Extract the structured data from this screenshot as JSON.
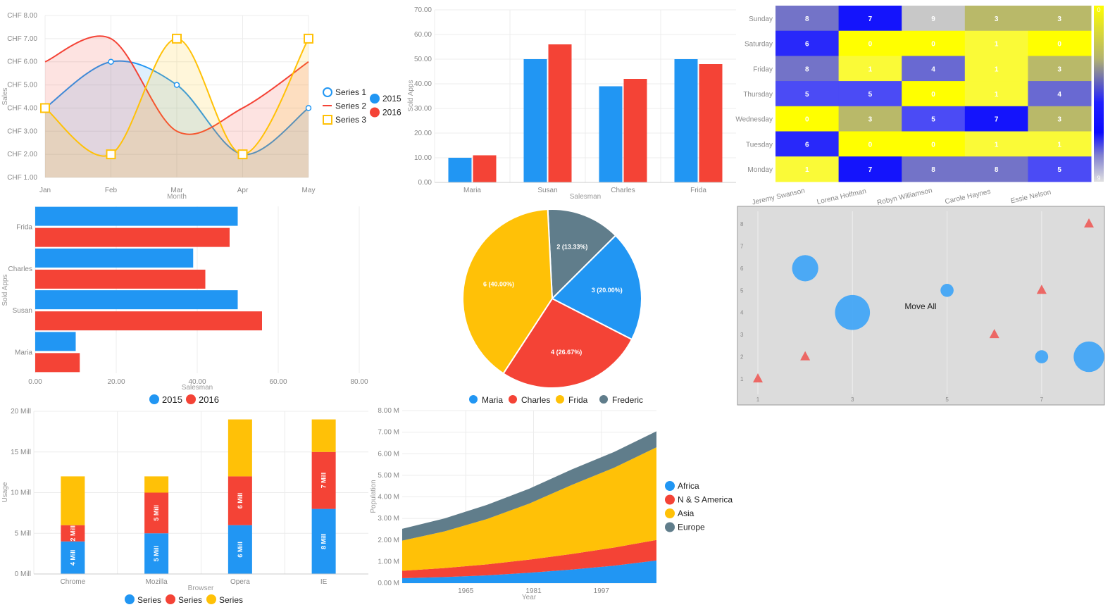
{
  "colors": {
    "blue": "#2196f3",
    "red": "#f44336",
    "amber": "#ffc107",
    "slate": "#607d8b"
  },
  "chart_data": [
    {
      "id": "spline",
      "type": "area",
      "categories": [
        "Jan",
        "Feb",
        "Mar",
        "Apr",
        "May"
      ],
      "y_ticks": [
        "CHF 1.00",
        "CHF 2.00",
        "CHF 3.00",
        "CHF 4.00",
        "CHF 5.00",
        "CHF 6.00",
        "CHF 7.00",
        "CHF 8.00"
      ],
      "ylim": [
        1,
        8
      ],
      "xlabel": "Month",
      "ylabel": "Sales",
      "series": [
        {
          "name": "Series 1",
          "values": [
            4,
            6,
            5,
            2,
            4
          ],
          "color": "#2196f3",
          "fill": "#e0e3f5"
        },
        {
          "name": "Series 2",
          "values": [
            6,
            7,
            3,
            4,
            6
          ],
          "color": "#f44336",
          "fill": "#fcdcdc"
        },
        {
          "name": "Series 3",
          "values": [
            4,
            2,
            7,
            2,
            7
          ],
          "color": "#ffc107",
          "fill": "#fdf0cc"
        }
      ],
      "legend2": [
        {
          "name": "2015",
          "color": "#2196f3"
        },
        {
          "name": "2016",
          "color": "#f44336"
        }
      ]
    },
    {
      "id": "columns",
      "type": "bar",
      "categories": [
        "Maria",
        "Susan",
        "Charles",
        "Frida"
      ],
      "y_ticks": [
        "0.00",
        "10.00",
        "20.00",
        "30.00",
        "40.00",
        "50.00",
        "60.00",
        "70.00"
      ],
      "ylim": [
        0,
        70
      ],
      "xlabel": "Salesman",
      "ylabel": "Sold Apps",
      "series": [
        {
          "name": "2015",
          "values": [
            10,
            50,
            39,
            50
          ],
          "color": "#2196f3"
        },
        {
          "name": "2016",
          "values": [
            11,
            56,
            42,
            48
          ],
          "color": "#f44336"
        }
      ]
    },
    {
      "id": "heatmap",
      "type": "heatmap",
      "rows": [
        "Sunday",
        "Saturday",
        "Friday",
        "Thursday",
        "Wednesday",
        "Tuesday",
        "Monday"
      ],
      "cols": [
        "Jeremy Swanson",
        "Lorena Hoffman",
        "Robyn Williamson",
        "Carole Haynes",
        "Essie Nelson"
      ],
      "values": [
        [
          8,
          7,
          9,
          3,
          3
        ],
        [
          6,
          0,
          0,
          1,
          0
        ],
        [
          8,
          1,
          4,
          1,
          3
        ],
        [
          5,
          5,
          0,
          1,
          4
        ],
        [
          0,
          3,
          5,
          7,
          3
        ],
        [
          6,
          0,
          0,
          1,
          1
        ],
        [
          1,
          7,
          8,
          8,
          5
        ]
      ],
      "scale_min": "0",
      "scale_max": "9"
    },
    {
      "id": "hbars",
      "type": "bar",
      "categories": [
        "Frida",
        "Charles",
        "Susan",
        "Maria"
      ],
      "x_ticks": [
        "0.00",
        "20.00",
        "40.00",
        "60.00",
        "80.00"
      ],
      "xlim": [
        0,
        80
      ],
      "xlabel": "Salesman",
      "ylabel": "Sold Apps",
      "series": [
        {
          "name": "2015",
          "values": [
            50,
            39,
            50,
            10
          ],
          "color": "#2196f3"
        },
        {
          "name": "2016",
          "values": [
            48,
            42,
            56,
            11
          ],
          "color": "#f44336"
        }
      ]
    },
    {
      "id": "pie",
      "type": "pie",
      "slices": [
        {
          "name": "Frederic",
          "value": 2,
          "label": "2 (13.33%)",
          "color": "#607d8b"
        },
        {
          "name": "Maria",
          "value": 3,
          "label": "3 (20.00%)",
          "color": "#2196f3"
        },
        {
          "name": "Charles",
          "value": 4,
          "label": "4 (26.67%)",
          "color": "#f44336"
        },
        {
          "name": "Frida",
          "value": 6,
          "label": "6 (40.00%)",
          "color": "#ffc107"
        }
      ],
      "legend": [
        "Maria",
        "Charles",
        "Frida",
        "Frederic"
      ]
    },
    {
      "id": "bubble",
      "type": "scatter",
      "x_ticks": [
        "1",
        "3",
        "5",
        "7"
      ],
      "y_ticks": [
        "1",
        "2",
        "3",
        "4",
        "5",
        "6",
        "7",
        "8"
      ],
      "xlim": [
        1,
        8
      ],
      "ylim": [
        1,
        8
      ],
      "annotation": "Move All",
      "bubbles": [
        {
          "x": 2,
          "y": 6,
          "size": 3
        },
        {
          "x": 3,
          "y": 4,
          "size": 4
        },
        {
          "x": 5,
          "y": 5,
          "size": 1.5
        },
        {
          "x": 7,
          "y": 2,
          "size": 1.5
        },
        {
          "x": 8,
          "y": 2,
          "size": 3.5
        }
      ],
      "triangles": [
        {
          "x": 1,
          "y": 1
        },
        {
          "x": 2,
          "y": 2
        },
        {
          "x": 6,
          "y": 3
        },
        {
          "x": 7,
          "y": 5
        },
        {
          "x": 8,
          "y": 8
        }
      ]
    },
    {
      "id": "stacked",
      "type": "bar",
      "categories": [
        "Chrome",
        "Mozilla",
        "Opera",
        "IE"
      ],
      "y_ticks": [
        "0 Mill",
        "5 Mill",
        "10 Mill",
        "15 Mill",
        "20 Mill"
      ],
      "ylim": [
        0,
        20
      ],
      "xlabel": "Browser",
      "ylabel": "Usage",
      "series": [
        {
          "name": "Series",
          "values": [
            4,
            5,
            6,
            8
          ],
          "labels": [
            "4 Mill",
            "5 Mill",
            "6 Mill",
            "8 Mill"
          ],
          "color": "#2196f3"
        },
        {
          "name": "Series",
          "values": [
            2,
            5,
            6,
            7
          ],
          "labels": [
            "2 Mill",
            "5 Mill",
            "6 Mill",
            "7 Mill"
          ],
          "color": "#f44336"
        },
        {
          "name": "Series",
          "values": [
            6,
            2,
            7,
            4
          ],
          "labels": [
            "",
            "",
            "",
            ""
          ],
          "color": "#ffc107"
        }
      ]
    },
    {
      "id": "area",
      "type": "area",
      "x": [
        1950,
        1960,
        1970,
        1980,
        1990,
        2000,
        2010
      ],
      "x_ticks": [
        1965,
        1981,
        1997
      ],
      "xlim": [
        1950,
        2010
      ],
      "y_ticks": [
        "0.00 M",
        "1.00 M",
        "2.00 M",
        "3.00 M",
        "4.00 M",
        "5.00 M",
        "6.00 M",
        "7.00 M",
        "8.00 M"
      ],
      "ylim": [
        0,
        8
      ],
      "xlabel": "Year",
      "ylabel": "Population",
      "series": [
        {
          "name": "Africa",
          "values": [
            0.23,
            0.28,
            0.36,
            0.48,
            0.63,
            0.81,
            1.05
          ],
          "color": "#2196f3"
        },
        {
          "name": "N & S America",
          "values": [
            0.34,
            0.42,
            0.51,
            0.61,
            0.72,
            0.84,
            0.95
          ],
          "color": "#f44336"
        },
        {
          "name": "Asia",
          "values": [
            1.4,
            1.7,
            2.1,
            2.6,
            3.2,
            3.7,
            4.3
          ],
          "color": "#ffc107"
        },
        {
          "name": "Europe",
          "values": [
            0.55,
            0.6,
            0.66,
            0.69,
            0.72,
            0.73,
            0.74
          ],
          "color": "#607d8b"
        }
      ]
    }
  ]
}
